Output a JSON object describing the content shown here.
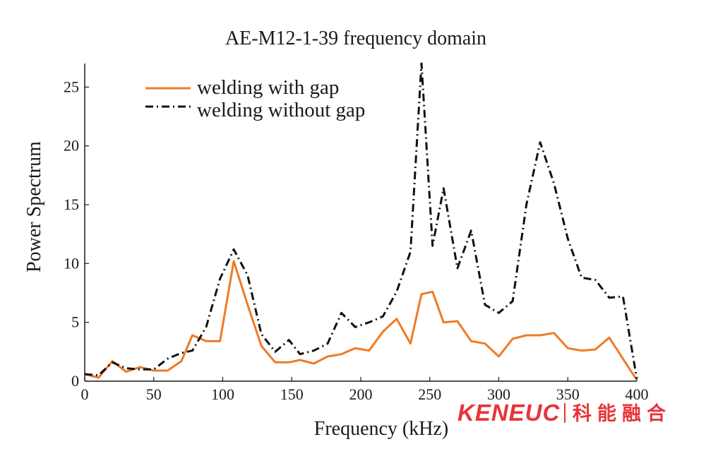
{
  "chart_data": {
    "type": "line",
    "title": "AE-M12-1-39 frequency domain",
    "xlabel": "Frequency (kHz)",
    "ylabel": "Power Spectrum",
    "xlim": [
      0,
      400
    ],
    "ylim": [
      0,
      27
    ],
    "x_ticks": [
      "0",
      "50",
      "100",
      "150",
      "200",
      "250",
      "300",
      "350",
      "400"
    ],
    "y_ticks": [
      "0",
      "5",
      "10",
      "15",
      "20",
      "25"
    ],
    "grid": false,
    "legend_position": "top-left",
    "series": [
      {
        "name": "welding with gap",
        "color": "#f07a24",
        "style": "solid",
        "x": [
          0,
          10,
          20,
          30,
          40,
          50,
          60,
          70,
          78,
          88,
          98,
          108,
          118,
          128,
          138,
          148,
          156,
          166,
          176,
          186,
          196,
          206,
          216,
          226,
          236,
          244,
          252,
          260,
          270,
          280,
          290,
          300,
          310,
          320,
          330,
          340,
          350,
          360,
          370,
          380,
          390,
          400
        ],
        "y": [
          0.6,
          0.3,
          1.7,
          0.8,
          1.2,
          0.9,
          0.9,
          1.7,
          3.9,
          3.4,
          3.4,
          10.2,
          6.5,
          3.0,
          1.6,
          1.6,
          1.8,
          1.5,
          2.1,
          2.3,
          2.8,
          2.6,
          4.2,
          5.3,
          3.2,
          7.4,
          7.6,
          5.0,
          5.1,
          3.4,
          3.2,
          2.1,
          3.6,
          3.9,
          3.9,
          4.1,
          2.8,
          2.6,
          2.7,
          3.7,
          1.9,
          0.1
        ]
      },
      {
        "name": "welding without gap",
        "color": "#111111",
        "style": "dash-dot",
        "x": [
          0,
          10,
          20,
          30,
          40,
          50,
          60,
          70,
          78,
          88,
          98,
          108,
          118,
          128,
          138,
          148,
          156,
          166,
          176,
          186,
          196,
          206,
          216,
          226,
          236,
          244,
          252,
          260,
          270,
          280,
          290,
          300,
          310,
          320,
          330,
          340,
          350,
          360,
          370,
          380,
          390,
          400
        ],
        "y": [
          0.6,
          0.5,
          1.6,
          1.1,
          1.0,
          1.0,
          1.9,
          2.4,
          2.6,
          4.6,
          8.7,
          11.2,
          9.0,
          4.0,
          2.5,
          3.5,
          2.3,
          2.6,
          3.2,
          5.8,
          4.6,
          5.0,
          5.5,
          7.6,
          11.0,
          27.0,
          11.5,
          16.4,
          9.6,
          12.8,
          6.5,
          5.8,
          6.8,
          15.0,
          20.3,
          16.8,
          12.1,
          8.8,
          8.6,
          7.1,
          7.2,
          0.2
        ]
      }
    ]
  },
  "watermark": {
    "latin": "KENEUC",
    "cjk": "科能融合",
    "color": "#e8343a"
  }
}
